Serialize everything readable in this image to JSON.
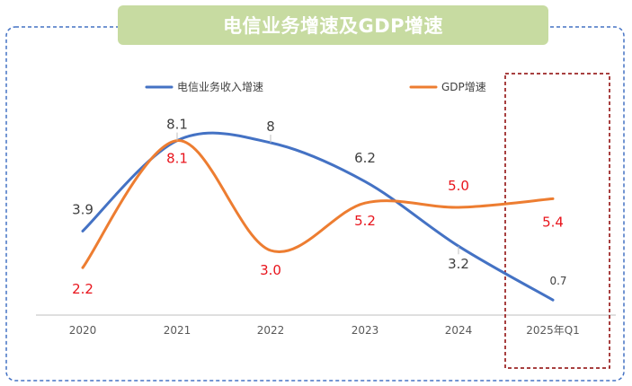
{
  "chart_data": {
    "type": "line",
    "title": "电信业务增速及GDP增速",
    "categories": [
      "2020",
      "2021",
      "2022",
      "2023",
      "2024",
      "2025年Q1"
    ],
    "series": [
      {
        "name": "电信业务收入增速",
        "values": [
          3.9,
          8.1,
          8,
          6.2,
          3.2,
          0.7
        ],
        "labels": [
          "3.9",
          "8.1",
          "8",
          "6.2",
          "3.2",
          "0.7"
        ],
        "color": "#4472c4",
        "label_color": "#404040"
      },
      {
        "name": "GDP增速",
        "values": [
          2.2,
          8.1,
          3.0,
          5.2,
          5.0,
          5.4
        ],
        "labels": [
          "2.2",
          "8.1",
          "3.0",
          "5.2",
          "5.0",
          "5.4"
        ],
        "color": "#ed7d31",
        "label_color": "#e8141c"
      }
    ],
    "highlight_category": "2025年Q1",
    "highlight_color": "#8b0000",
    "frame_color": "#4472c4",
    "axis_color": "#bfbfbf",
    "tick_label_color": "#595959",
    "legend_position": "top",
    "xlabel": "",
    "ylabel": "",
    "grid": false
  }
}
